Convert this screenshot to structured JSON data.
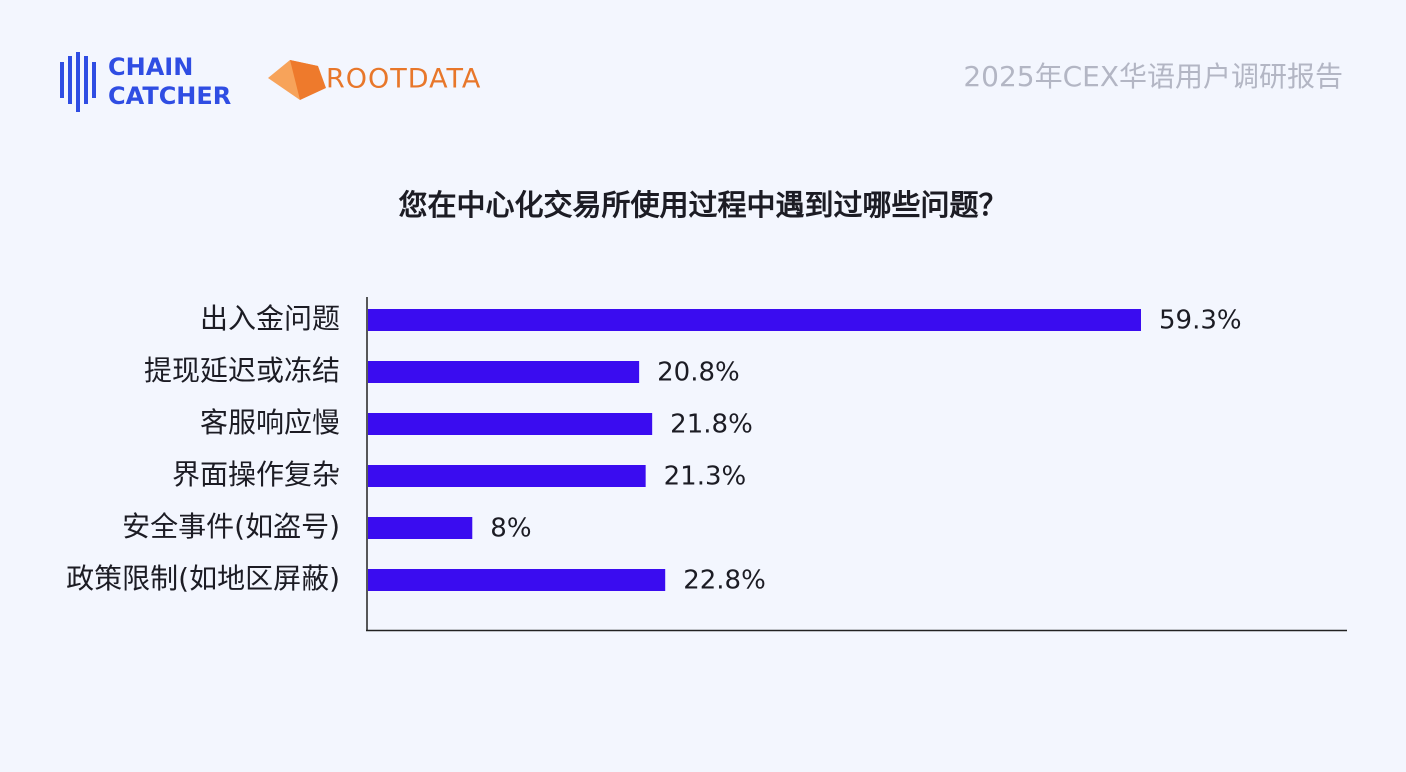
{
  "header": {
    "logo_lines": [
      "CHAIN",
      "CATCHER"
    ],
    "partner_logo": "ROOTDATA",
    "report_title": "2025年CEX华语用户调研报告"
  },
  "chart_data": {
    "type": "bar",
    "orientation": "horizontal",
    "title": "您在中心化交易所使用过程中遇到过哪些问题？",
    "categories": [
      "出入金问题",
      "提现延迟或冻结",
      "客服响应慢",
      "界面操作复杂",
      "安全事件(如盗号)",
      "政策限制(如地区屏蔽)"
    ],
    "values": [
      59.3,
      20.8,
      21.8,
      21.3,
      8,
      22.8
    ],
    "value_labels": [
      "59.3%",
      "20.8%",
      "21.8%",
      "21.3%",
      "8%",
      "22.8%"
    ],
    "color": "#3a0cf0"
  }
}
